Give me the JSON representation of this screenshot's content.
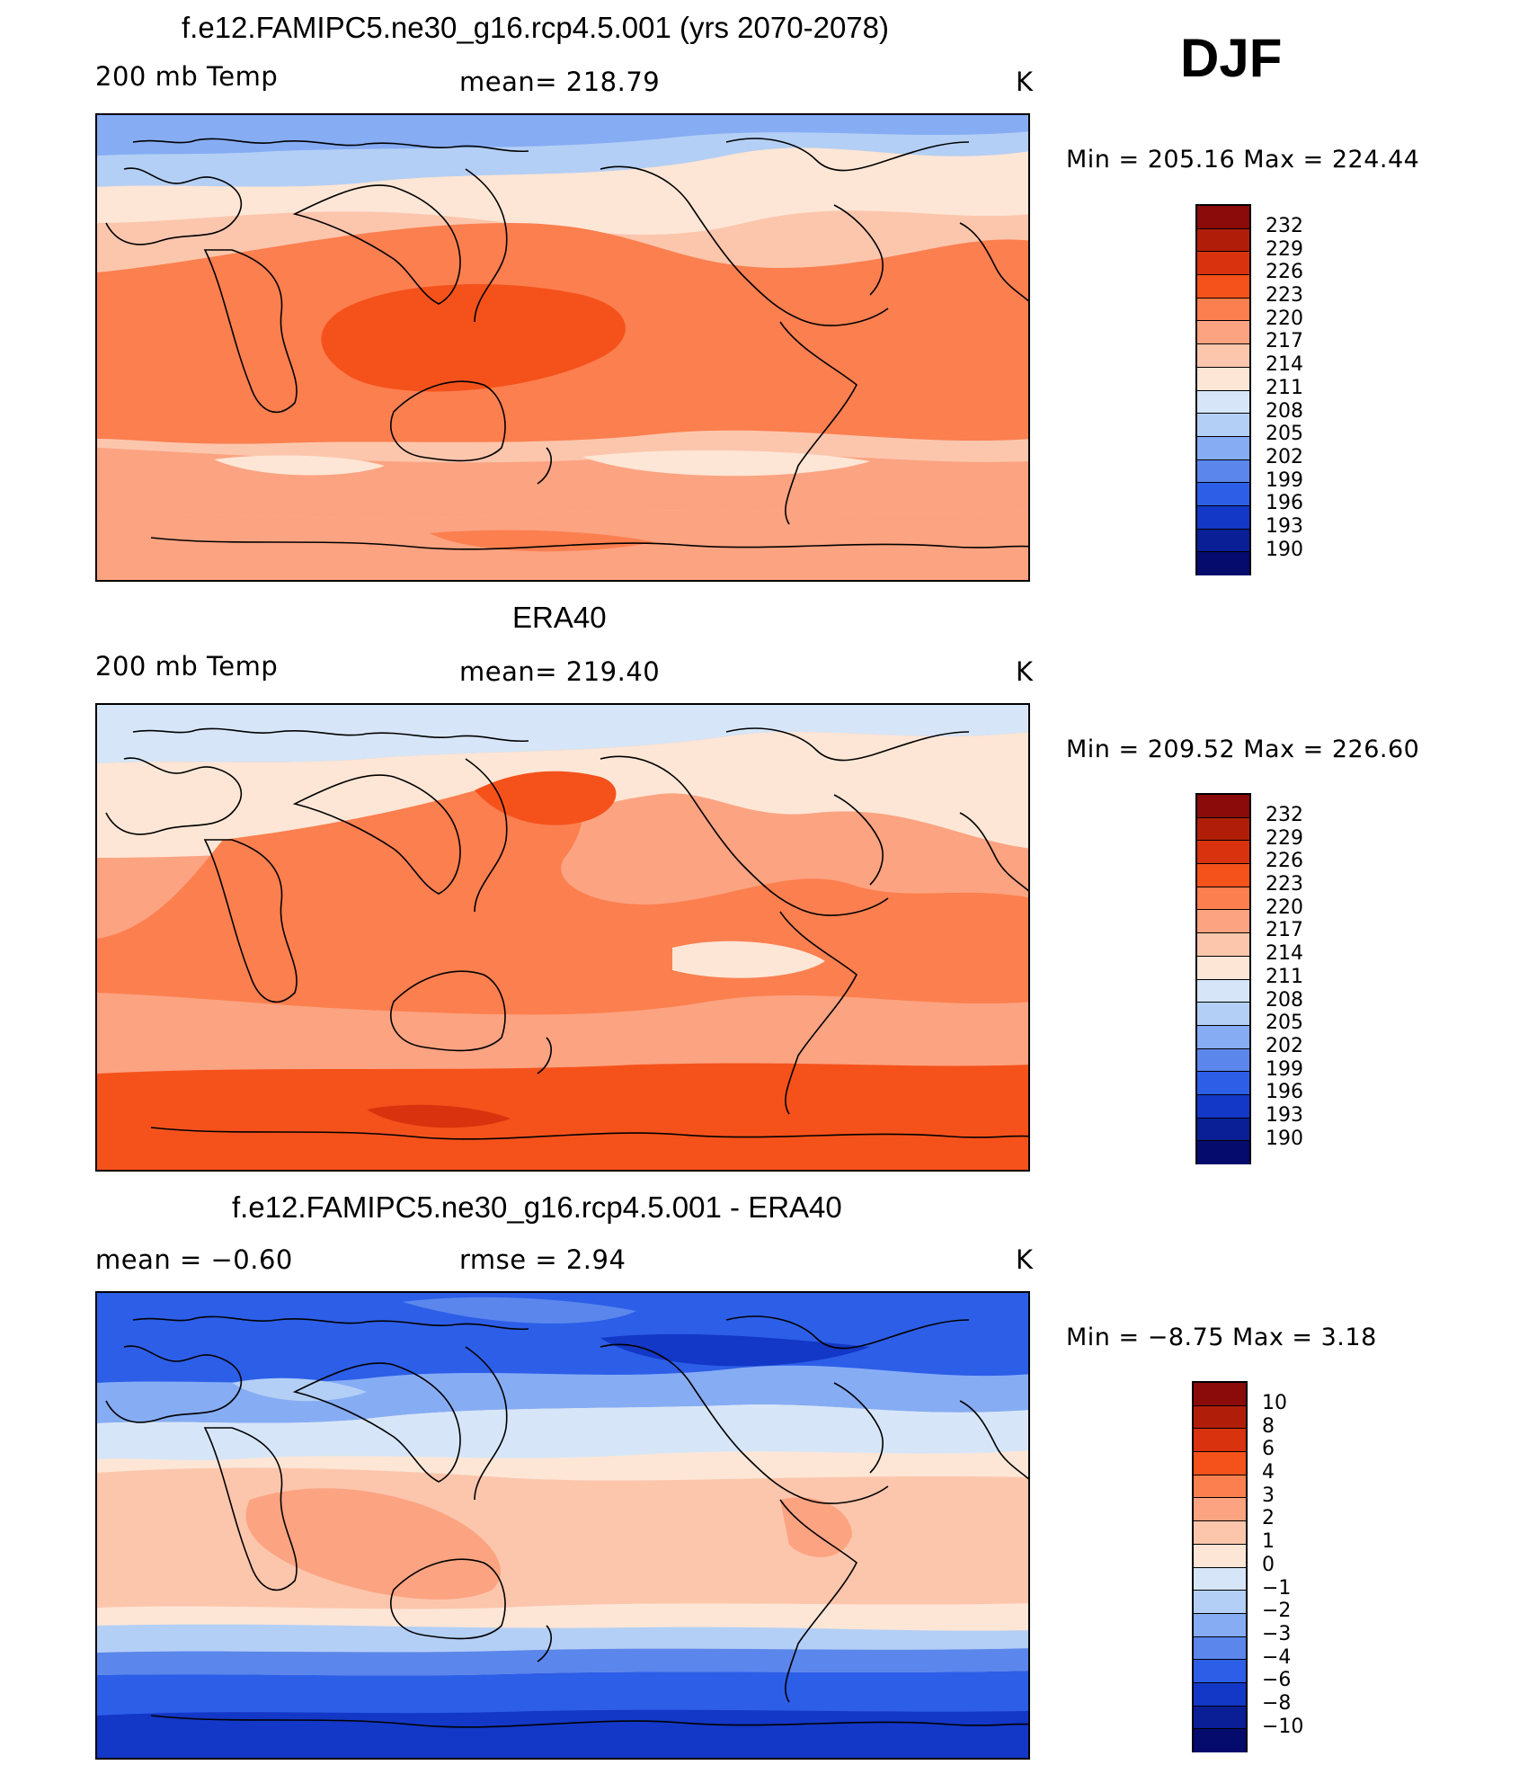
{
  "corner_label": "DJF",
  "panels": [
    {
      "title": "f.e12.FAMIPC5.ne30_g16.rcp4.5.001 (yrs 2070-2078)",
      "left_text": "200 mb Temp",
      "center_text": "mean=  218.79",
      "units": "K",
      "minmax": "Min  =  205.16  Max  =  224.44",
      "colorbar_labels": [
        "232",
        "229",
        "226",
        "223",
        "220",
        "217",
        "214",
        "211",
        "208",
        "205",
        "202",
        "199",
        "196",
        "193",
        "190"
      ]
    },
    {
      "title": "ERA40",
      "left_text": "200 mb Temp",
      "center_text": "mean=  219.40",
      "units": "K",
      "minmax": "Min  =  209.52  Max  =  226.60",
      "colorbar_labels": [
        "232",
        "229",
        "226",
        "223",
        "220",
        "217",
        "214",
        "211",
        "208",
        "205",
        "202",
        "199",
        "196",
        "193",
        "190"
      ]
    },
    {
      "title": "f.e12.FAMIPC5.ne30_g16.rcp4.5.001 - ERA40",
      "left_text": "mean  =     −0.60",
      "center_text": "rmse  =     2.94",
      "units": "K",
      "minmax": "Min  =    −8.75  Max  =       3.18",
      "colorbar_labels": [
        "10",
        "8",
        "6",
        "4",
        "3",
        "2",
        "1",
        "0",
        "−1",
        "−2",
        "−3",
        "−4",
        "−6",
        "−8",
        "−10"
      ]
    }
  ],
  "colors": {
    "temp_scale": [
      "#8b0a0a",
      "#b01e0a",
      "#d9320e",
      "#f5521b",
      "#fc7f4f",
      "#fca381",
      "#fcc6ad",
      "#fde6d6",
      "#d6e6f8",
      "#b3cff5",
      "#86acf4",
      "#5b86ec",
      "#2c5ee8",
      "#1337c6",
      "#0a1e96",
      "#040b6d"
    ],
    "diff_scale": [
      "#8b0a0a",
      "#b01e0a",
      "#d9320e",
      "#f5521b",
      "#fc7f4f",
      "#fca381",
      "#fcc6ad",
      "#fde6d6",
      "#d6e6f8",
      "#b3cff5",
      "#86acf4",
      "#5b86ec",
      "#2c5ee8",
      "#1337c6",
      "#0a1e96",
      "#040b6d"
    ]
  }
}
